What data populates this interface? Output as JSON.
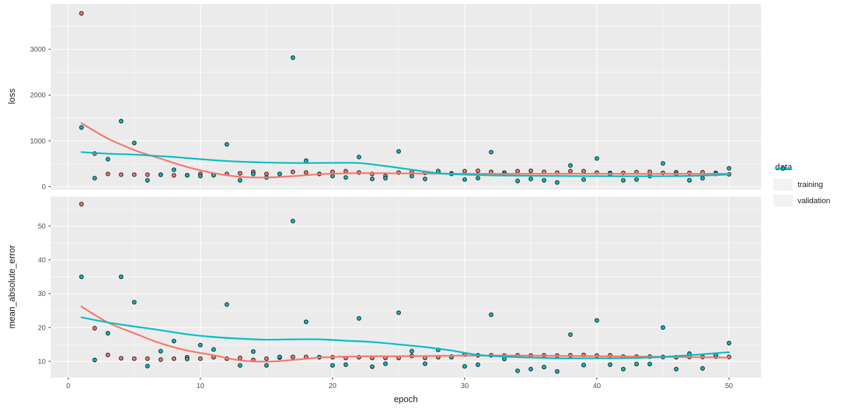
{
  "figure": {
    "background": "#FFFFFF",
    "panel_background": "#EBEBEB",
    "grid_color": "#FFFFFF",
    "axis_text_color": "#4D4D4D",
    "tick_mark_color": "#333333",
    "xlabel": "epoch",
    "x_ticks": [
      0,
      10,
      20,
      30,
      40,
      50
    ],
    "x_minor_ticks": [
      5,
      15,
      25,
      35,
      45
    ],
    "xlim": [
      -1.33,
      52.42
    ]
  },
  "legend": {
    "title": "data",
    "key_background": "#F2F2F2",
    "entries": [
      {
        "label": "training",
        "color": "#F8766D"
      },
      {
        "label": "validation",
        "color": "#00BFC4"
      }
    ]
  },
  "chart_data": [
    {
      "type": "scatter",
      "facet": "loss",
      "ylabel": "loss",
      "yticks": [
        0,
        1000,
        2000,
        3000
      ],
      "y_minor_ticks": [
        500,
        1500,
        2500,
        3500
      ],
      "ylim": [
        -62,
        3985
      ],
      "grid": true,
      "legend_position": "right",
      "x": [
        1,
        2,
        3,
        4,
        5,
        6,
        7,
        8,
        9,
        10,
        11,
        12,
        13,
        14,
        15,
        16,
        17,
        18,
        19,
        20,
        21,
        22,
        23,
        24,
        25,
        26,
        27,
        28,
        29,
        30,
        31,
        32,
        33,
        34,
        35,
        36,
        37,
        38,
        39,
        40,
        41,
        42,
        43,
        44,
        45,
        46,
        47,
        48,
        49,
        50
      ],
      "series": [
        {
          "name": "training",
          "color": "#F8766D",
          "values": [
            3785,
            723,
            277,
            262,
            262,
            262,
            260,
            246,
            250,
            277,
            262,
            277,
            292,
            323,
            277,
            277,
            323,
            308,
            277,
            323,
            338,
            308,
            277,
            231,
            308,
            323,
            300,
            330,
            290,
            338,
            345,
            323,
            308,
            338,
            345,
            323,
            308,
            338,
            338,
            308,
            300,
            300,
            315,
            323,
            300,
            315,
            300,
            315,
            300,
            270
          ]
        },
        {
          "name": "validation",
          "color": "#00BFC4",
          "values": [
            1292,
            185,
            600,
            1431,
            954,
            138,
            260,
            369,
            246,
            231,
            250,
            924,
            138,
            277,
            200,
            277,
            2817,
            570,
            277,
            231,
            200,
            646,
            169,
            185,
            770,
            231,
            169,
            338,
            277,
            154,
            185,
            754,
            277,
            123,
            169,
            138,
            92,
            462,
            154,
            615,
            280,
            138,
            154,
            231,
            508,
            277,
            138,
            185,
            277,
            400
          ]
        }
      ],
      "smooth": [
        {
          "name": "training",
          "color": "#F8766D",
          "x": [
            1,
            3,
            5,
            6,
            7,
            9,
            11,
            13,
            15,
            17,
            19,
            21,
            23,
            25,
            28,
            31,
            34,
            37,
            40,
            43,
            46,
            48,
            50
          ],
          "values": [
            1385,
            1050,
            800,
            700,
            610,
            430,
            295,
            215,
            200,
            230,
            270,
            292,
            295,
            290,
            283,
            280,
            280,
            280,
            282,
            280,
            280,
            280,
            282
          ]
        },
        {
          "name": "validation",
          "color": "#00BFC4",
          "x": [
            1,
            3,
            5,
            7,
            8,
            10,
            12,
            14,
            16,
            18,
            20,
            22,
            24,
            26,
            28,
            30,
            32,
            34,
            36,
            38,
            40,
            42,
            44,
            46,
            48,
            50
          ],
          "values": [
            754,
            720,
            700,
            665,
            648,
            600,
            560,
            535,
            520,
            515,
            520,
            515,
            450,
            370,
            295,
            262,
            248,
            240,
            235,
            232,
            230,
            228,
            228,
            230,
            242,
            265
          ]
        }
      ]
    },
    {
      "type": "scatter",
      "facet": "mean_absolute_error",
      "ylabel": "mean_absolute_error",
      "yticks": [
        10,
        20,
        30,
        40,
        50
      ],
      "y_minor_ticks": [
        5,
        15,
        25,
        35,
        45,
        55
      ],
      "ylim": [
        5.2,
        58.75
      ],
      "grid": true,
      "legend_position": "right",
      "x": [
        1,
        2,
        3,
        4,
        5,
        6,
        7,
        8,
        9,
        10,
        11,
        12,
        13,
        14,
        15,
        16,
        17,
        18,
        19,
        20,
        21,
        22,
        23,
        24,
        25,
        26,
        27,
        28,
        29,
        30,
        31,
        32,
        33,
        34,
        35,
        36,
        37,
        38,
        39,
        40,
        41,
        42,
        43,
        44,
        45,
        46,
        47,
        48,
        49,
        50
      ],
      "series": [
        {
          "name": "training",
          "color": "#F8766D",
          "values": [
            56.5,
            19.8,
            11.9,
            10.9,
            10.8,
            10.8,
            10.5,
            10.8,
            11.2,
            10.8,
            11.2,
            10.8,
            11.0,
            10.4,
            10.8,
            11.1,
            11.3,
            11.3,
            11.2,
            11.2,
            11.0,
            11.2,
            11.0,
            11.0,
            11.0,
            11.6,
            11.0,
            11.2,
            11.4,
            12.0,
            11.8,
            11.8,
            11.7,
            11.8,
            11.7,
            11.8,
            11.7,
            11.8,
            11.9,
            11.7,
            11.8,
            11.4,
            11.4,
            11.4,
            11.3,
            11.2,
            11.3,
            11.3,
            11.4,
            11.3
          ]
        },
        {
          "name": "validation",
          "color": "#00BFC4",
          "values": [
            35.0,
            10.4,
            18.3,
            35.0,
            27.5,
            8.6,
            13.0,
            16.0,
            10.7,
            14.8,
            13.5,
            26.8,
            8.8,
            12.9,
            8.8,
            11.3,
            51.5,
            21.7,
            11.2,
            8.8,
            9.0,
            22.7,
            8.4,
            9.3,
            24.4,
            13.0,
            9.3,
            13.4,
            11.2,
            8.5,
            9.0,
            23.8,
            10.7,
            7.2,
            7.7,
            8.3,
            7.0,
            17.9,
            8.9,
            22.1,
            9.0,
            7.7,
            9.2,
            9.2,
            20.0,
            7.7,
            12.3,
            7.9,
            11.9,
            15.4
          ]
        }
      ],
      "smooth": [
        {
          "name": "training",
          "color": "#F8766D",
          "x": [
            1,
            3,
            5,
            7,
            9,
            11,
            13,
            15,
            17,
            19,
            21,
            23,
            25,
            28,
            31,
            34,
            37,
            40,
            43,
            46,
            48,
            50
          ],
          "values": [
            26.2,
            21.5,
            18.3,
            15.3,
            13.2,
            11.8,
            10.3,
            9.9,
            10.4,
            11.1,
            11.4,
            11.5,
            11.5,
            11.6,
            11.7,
            11.7,
            11.6,
            11.5,
            11.4,
            11.3,
            11.2,
            11.1
          ]
        },
        {
          "name": "validation",
          "color": "#00BFC4",
          "x": [
            1,
            3,
            5,
            7,
            9,
            11,
            13,
            15,
            17,
            19,
            21,
            23,
            25,
            27,
            29,
            31,
            33,
            35,
            37,
            39,
            41,
            43,
            45,
            47,
            49,
            50
          ],
          "values": [
            23.0,
            21.5,
            20.3,
            19.2,
            18.0,
            17.2,
            16.7,
            16.4,
            16.5,
            16.5,
            16.1,
            15.7,
            15.0,
            14.2,
            13.2,
            11.9,
            11.4,
            11.1,
            10.9,
            10.9,
            10.9,
            11.0,
            11.3,
            11.8,
            12.4,
            12.7
          ]
        }
      ]
    }
  ]
}
